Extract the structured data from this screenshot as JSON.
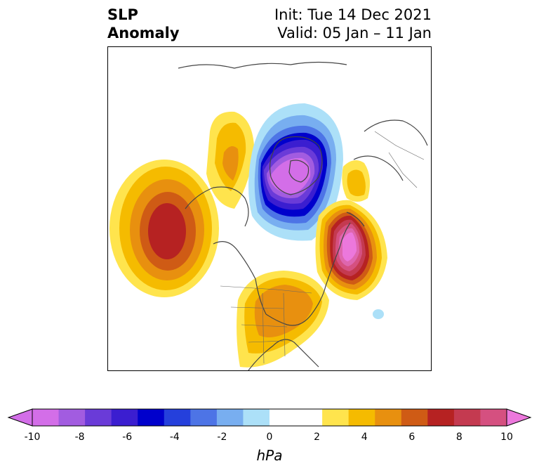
{
  "header": {
    "title_line1": "SLP",
    "title_line2": "Anomaly",
    "init": "Init: Tue 14 Dec 2021",
    "valid": "Valid: 05 Jan – 11 Jan"
  },
  "map": {
    "projection": "north-polar-stereographic",
    "field": "SLP anomaly",
    "features": [
      {
        "name": "north-pacific-high",
        "sign": "positive",
        "peak_hpa": 6
      },
      {
        "name": "alaska-canada-ridge",
        "sign": "positive",
        "peak_hpa": 4
      },
      {
        "name": "arctic-low",
        "sign": "negative",
        "peak_hpa": -10
      },
      {
        "name": "north-atlantic-high",
        "sign": "positive",
        "peak_hpa": 10
      },
      {
        "name": "eastern-us-high",
        "sign": "positive",
        "peak_hpa": 4
      },
      {
        "name": "scandinavia-high",
        "sign": "positive",
        "peak_hpa": 3
      }
    ]
  },
  "colorbar": {
    "unit": "hPa",
    "range": [
      -10,
      10
    ],
    "step": 1,
    "tick_labels": [
      "-10",
      "-8",
      "-6",
      "-4",
      "-2",
      "0",
      "2",
      "4",
      "6",
      "8",
      "10"
    ],
    "colors": [
      "#d36ee8",
      "#a25ce0",
      "#6a3bd8",
      "#3b1ed0",
      "#0000cc",
      "#2540dc",
      "#4d74e6",
      "#78aef0",
      "#ace0f8",
      "#ffffff",
      "#ffffff",
      "#ffe44d",
      "#f5bb00",
      "#e8900f",
      "#cf5b15",
      "#b62222",
      "#c43a50",
      "#d55080",
      "#de66ae",
      "#ec78dc"
    ]
  }
}
